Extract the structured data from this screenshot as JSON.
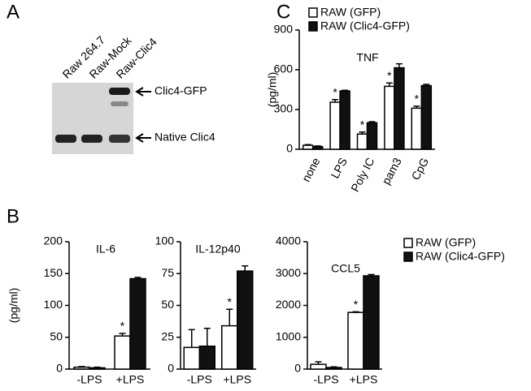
{
  "panel_labels": [
    "A",
    "B",
    "C"
  ],
  "blot": {
    "lanes": [
      "Raw 264.7",
      "Raw-Mock",
      "Raw-Clic4"
    ],
    "bands": [
      "Clic4-GFP",
      "Native Clic4"
    ]
  },
  "chart_data": [
    {
      "type": "bar",
      "title": "TNF",
      "y_label": "(pg/ml)",
      "categories": [
        "none",
        "LPS",
        "Poly IC",
        "pam3",
        "CpG"
      ],
      "series": [
        {
          "name": "RAW (GFP)",
          "color": "#ffffff",
          "values": [
            30,
            355,
            115,
            475,
            310
          ],
          "errors": [
            5,
            20,
            15,
            25,
            15
          ]
        },
        {
          "name": "RAW (Clic4-GFP)",
          "color": "#111111",
          "values": [
            20,
            440,
            200,
            615,
            480
          ],
          "errors": [
            5,
            5,
            8,
            30,
            10
          ]
        }
      ],
      "annotations": [
        {
          "label": "*",
          "series": 0,
          "index": 1
        },
        {
          "label": "*",
          "series": 0,
          "index": 2
        },
        {
          "label": "*",
          "series": 0,
          "index": 3
        },
        {
          "label": "*",
          "series": 0,
          "index": 4
        }
      ],
      "ylim": [
        0,
        900
      ],
      "yticks": [
        0,
        300,
        600,
        900
      ],
      "legend": "upper left"
    },
    {
      "type": "bar",
      "title": "IL-6",
      "y_label": "(pg/ml)",
      "categories": [
        "-LPS",
        "+LPS"
      ],
      "series": [
        {
          "color": "#ffffff",
          "values": [
            3,
            52
          ],
          "errors": [
            1,
            4
          ]
        },
        {
          "color": "#111111",
          "values": [
            2,
            142
          ],
          "errors": [
            1,
            2
          ]
        }
      ],
      "annotations": [
        {
          "label": "*",
          "series": 0,
          "index": 1
        }
      ],
      "ylim": [
        0,
        200
      ],
      "yticks": [
        0,
        50,
        100,
        150,
        200
      ]
    },
    {
      "type": "bar",
      "title": "IL-12p40",
      "categories": [
        "-LPS",
        "+LPS"
      ],
      "series": [
        {
          "color": "#ffffff",
          "values": [
            17,
            34
          ],
          "errors": [
            14,
            13
          ]
        },
        {
          "color": "#111111",
          "values": [
            18,
            77
          ],
          "errors": [
            14,
            4
          ]
        }
      ],
      "annotations": [
        {
          "label": "*",
          "series": 0,
          "index": 1
        }
      ],
      "ylim": [
        0,
        100
      ],
      "yticks": [
        0,
        25,
        50,
        75,
        100
      ]
    },
    {
      "type": "bar",
      "title": "CCL5",
      "categories": [
        "-LPS",
        "+LPS"
      ],
      "series": [
        {
          "name": "RAW (GFP)",
          "color": "#ffffff",
          "values": [
            150,
            1780
          ],
          "errors": [
            80,
            20
          ]
        },
        {
          "name": "RAW (Clic4-GFP)",
          "color": "#111111",
          "values": [
            50,
            2930
          ],
          "errors": [
            20,
            40
          ]
        }
      ],
      "annotations": [
        {
          "label": "*",
          "series": 0,
          "index": 1
        }
      ],
      "ylim": [
        0,
        4000
      ],
      "yticks": [
        0,
        1000,
        2000,
        3000,
        4000
      ],
      "legend": "upper right"
    }
  ]
}
